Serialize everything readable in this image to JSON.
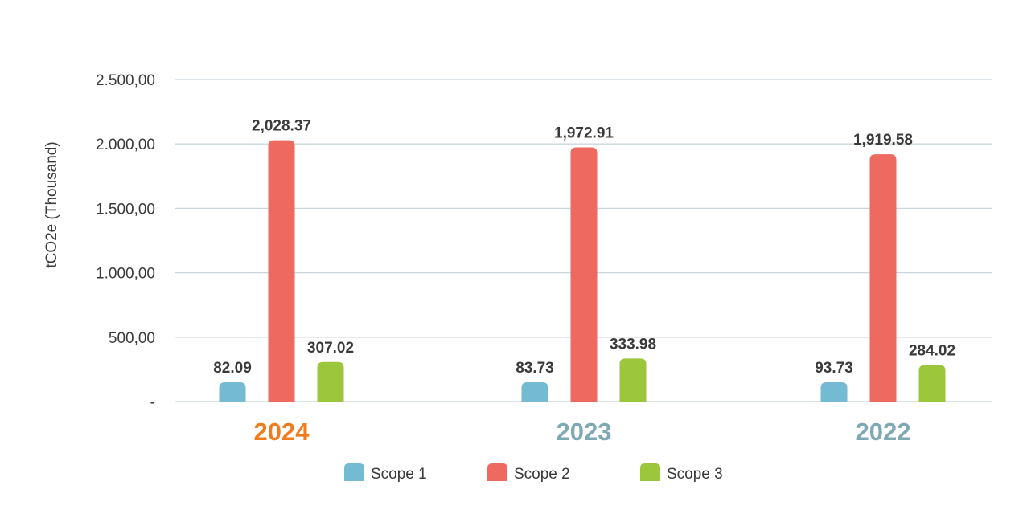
{
  "chart_data": {
    "type": "bar",
    "categories": [
      "2024",
      "2023",
      "2022"
    ],
    "category_colors": [
      "#f07c1c",
      "#7ea8b4",
      "#7ea8b4"
    ],
    "series": [
      {
        "name": "Scope 1",
        "color": "#73bad2",
        "values": [
          82.09,
          83.73,
          93.73
        ],
        "labels": [
          "82.09",
          "83.73",
          "93.73"
        ]
      },
      {
        "name": "Scope 2",
        "color": "#ee6a60",
        "values": [
          2028.37,
          1972.91,
          1919.58
        ],
        "labels": [
          "2,028.37",
          "1,972.91",
          "1,919.58"
        ]
      },
      {
        "name": "Scope 3",
        "color": "#9cc63b",
        "values": [
          307.02,
          333.98,
          284.02
        ],
        "labels": [
          "307.02",
          "333.98",
          "284.02"
        ]
      }
    ],
    "ylabel": "tCO2e (Thousand)",
    "ylim": [
      0,
      2500
    ],
    "yticks": [
      0,
      500,
      1000,
      1500,
      2000,
      2500
    ],
    "ytick_labels": [
      "-",
      "500,00",
      "1.000,00",
      "1.500,00",
      "2.000,00",
      "2.500,00"
    ],
    "grid": true,
    "legend_position": "bottom"
  }
}
